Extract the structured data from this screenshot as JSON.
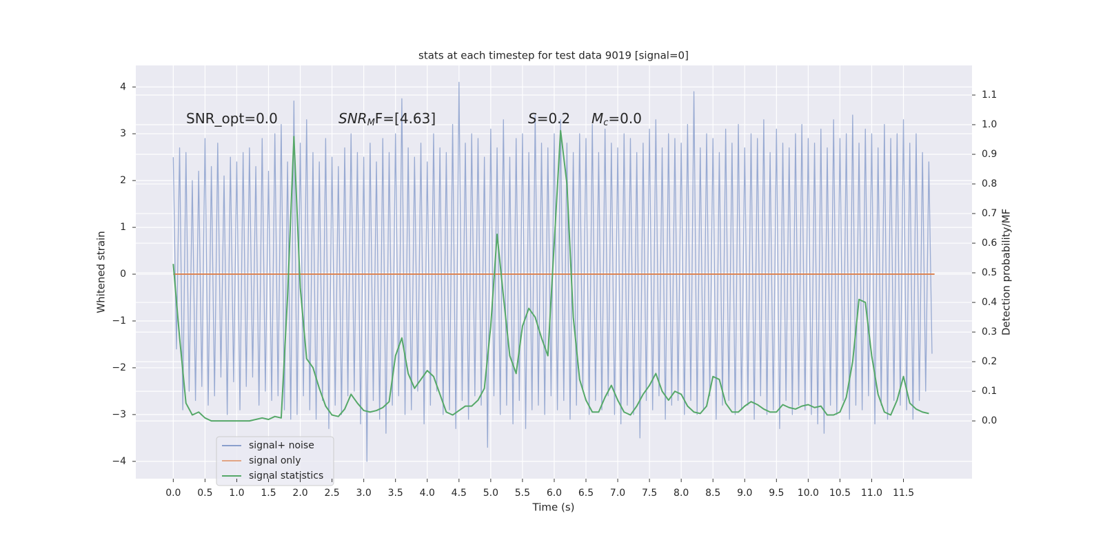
{
  "chart_data": {
    "type": "line",
    "title": "stats at each timestep for test data 9019 [signal=0]",
    "xlabel": "Time (s)",
    "ylabel": "Whitened strain",
    "y2label": "Detection probability/MF",
    "xlim": [
      -0.59,
      12.58
    ],
    "ylim": [
      -4.37,
      4.46
    ],
    "y2lim": [
      -0.195,
      1.2
    ],
    "xticks": [
      {
        "value": 0,
        "label": "0.0"
      },
      0.5,
      {
        "value": 1,
        "label": "1.0"
      },
      1.5,
      {
        "value": 2,
        "label": "2.0"
      },
      2.5,
      {
        "value": 3,
        "label": "3.0"
      },
      3.5,
      {
        "value": 4,
        "label": "4.0"
      },
      4.5,
      {
        "value": 5,
        "label": "5.0"
      },
      5.5,
      {
        "value": 6,
        "label": "6.0"
      },
      6.5,
      {
        "value": 7,
        "label": "7.0"
      },
      7.5,
      {
        "value": 8,
        "label": "8.0"
      },
      8.5,
      {
        "value": 9,
        "label": "9.0"
      },
      9.5,
      {
        "value": 10,
        "label": "10.0"
      },
      10.5,
      {
        "value": 11,
        "label": "11.0"
      },
      11.5
    ],
    "yticks": [
      {
        "value": -4,
        "label": "−4"
      },
      {
        "value": -3,
        "label": "−3"
      },
      {
        "value": -2,
        "label": "−2"
      },
      {
        "value": -1,
        "label": "−1"
      },
      0,
      1,
      2,
      3,
      4
    ],
    "y2ticks": [
      {
        "value": 0,
        "label": "0.0"
      },
      0.1,
      0.2,
      0.3,
      0.4,
      0.5,
      0.6,
      0.7,
      0.8,
      0.9,
      {
        "value": 1,
        "label": "1.0"
      },
      1.1
    ],
    "grid": true,
    "legend": "lower left",
    "annotations": [
      {
        "parts": [
          "SNR_opt=0.0"
        ]
      },
      {
        "parts": [
          "SNR",
          "M",
          "F=[4.63]"
        ]
      },
      {
        "parts": [
          "S",
          "=0.2"
        ]
      },
      {
        "parts": [
          "M",
          "c",
          "=0.0"
        ]
      }
    ],
    "series": [
      {
        "name": "signal+ noise",
        "color": "#8a9fcc",
        "x": [
          0,
          0.05,
          0.1,
          0.15,
          0.2,
          0.25,
          0.3,
          0.35,
          0.4,
          0.45,
          0.5,
          0.55,
          0.6,
          0.65,
          0.7,
          0.75,
          0.8,
          0.85,
          0.9,
          0.95,
          1,
          1.05,
          1.1,
          1.15,
          1.2,
          1.25,
          1.3,
          1.35,
          1.4,
          1.45,
          1.5,
          1.55,
          1.6,
          1.65,
          1.7,
          1.75,
          1.8,
          1.85,
          1.9,
          1.95,
          2,
          2.05,
          2.1,
          2.15,
          2.2,
          2.25,
          2.3,
          2.35,
          2.4,
          2.45,
          2.5,
          2.55,
          2.6,
          2.65,
          2.7,
          2.75,
          2.8,
          2.85,
          2.9,
          2.95,
          3,
          3.05,
          3.1,
          3.15,
          3.2,
          3.25,
          3.3,
          3.35,
          3.4,
          3.45,
          3.5,
          3.55,
          3.6,
          3.65,
          3.7,
          3.75,
          3.8,
          3.85,
          3.9,
          3.95,
          4,
          4.05,
          4.1,
          4.15,
          4.2,
          4.25,
          4.3,
          4.35,
          4.4,
          4.45,
          4.5,
          4.55,
          4.6,
          4.65,
          4.7,
          4.75,
          4.8,
          4.85,
          4.9,
          4.95,
          5,
          5.05,
          5.1,
          5.15,
          5.2,
          5.25,
          5.3,
          5.35,
          5.4,
          5.45,
          5.5,
          5.55,
          5.6,
          5.65,
          5.7,
          5.75,
          5.8,
          5.85,
          5.9,
          5.95,
          6,
          6.05,
          6.1,
          6.15,
          6.2,
          6.25,
          6.3,
          6.35,
          6.4,
          6.45,
          6.5,
          6.55,
          6.6,
          6.65,
          6.7,
          6.75,
          6.8,
          6.85,
          6.9,
          6.95,
          7,
          7.05,
          7.1,
          7.15,
          7.2,
          7.25,
          7.3,
          7.35,
          7.4,
          7.45,
          7.5,
          7.55,
          7.6,
          7.65,
          7.7,
          7.75,
          7.8,
          7.85,
          7.9,
          7.95,
          8,
          8.05,
          8.1,
          8.15,
          8.2,
          8.25,
          8.3,
          8.35,
          8.4,
          8.45,
          8.5,
          8.55,
          8.6,
          8.65,
          8.7,
          8.75,
          8.8,
          8.85,
          8.9,
          8.95,
          9,
          9.05,
          9.1,
          9.15,
          9.2,
          9.25,
          9.3,
          9.35,
          9.4,
          9.45,
          9.5,
          9.55,
          9.6,
          9.65,
          9.7,
          9.75,
          9.8,
          9.85,
          9.9,
          9.95,
          10,
          10.05,
          10.1,
          10.15,
          10.2,
          10.25,
          10.3,
          10.35,
          10.4,
          10.45,
          10.5,
          10.55,
          10.6,
          10.65,
          10.7,
          10.75,
          10.8,
          10.85,
          10.9,
          10.95,
          11,
          11.05,
          11.1,
          11.15,
          11.2,
          11.25,
          11.3,
          11.35,
          11.4,
          11.45,
          11.5,
          11.55,
          11.6,
          11.65,
          11.7,
          11.75,
          11.8,
          11.85,
          11.9,
          11.95
        ],
        "values": [
          2.5,
          -1.6,
          2.7,
          -2.9,
          2.6,
          -2.5,
          2.0,
          -2.7,
          2.2,
          -2.4,
          2.9,
          -2.8,
          2.3,
          -2.6,
          2.8,
          -2.2,
          2.1,
          -3.0,
          2.5,
          -2.3,
          2.4,
          -2.9,
          2.6,
          -2.4,
          2.7,
          -2.2,
          2.3,
          -2.8,
          2.9,
          -2.5,
          2.2,
          -2.7,
          3.0,
          -2.6,
          3.2,
          -2.9,
          2.4,
          -3.1,
          3.7,
          -3.0,
          2.8,
          -2.6,
          3.3,
          -2.9,
          2.6,
          -3.1,
          2.4,
          -2.7,
          2.9,
          -3.3,
          2.5,
          -2.8,
          2.3,
          -3.0,
          2.7,
          -2.6,
          3.0,
          -2.5,
          2.6,
          -3.2,
          2.5,
          -4.0,
          2.8,
          -2.7,
          2.4,
          -3.1,
          2.9,
          -3.4,
          2.6,
          -2.8,
          3.0,
          -2.6,
          3.75,
          -3.0,
          2.7,
          -2.9,
          2.5,
          -2.5,
          2.8,
          -3.2,
          2.4,
          -2.8,
          3.0,
          -2.5,
          2.7,
          -3.0,
          2.6,
          -2.9,
          3.2,
          -3.3,
          4.1,
          -2.7,
          2.8,
          -3.1,
          3.0,
          -2.6,
          2.9,
          -2.8,
          2.5,
          -3.7,
          3.1,
          -2.6,
          2.7,
          -3.0,
          3.3,
          -2.8,
          2.5,
          -3.2,
          2.9,
          -2.7,
          3.0,
          -3.3,
          2.6,
          -2.9,
          3.4,
          -2.8,
          2.8,
          -3.0,
          2.7,
          -2.6,
          3.0,
          -2.9,
          3.3,
          -2.7,
          2.8,
          -3.1,
          2.6,
          -2.8,
          3.0,
          -2.5,
          2.9,
          -3.0,
          3.2,
          -2.7,
          2.6,
          -2.9,
          3.1,
          -2.6,
          2.8,
          -3.0,
          2.7,
          -3.2,
          3.0,
          -2.8,
          2.9,
          -3.0,
          2.6,
          -3.5,
          2.8,
          -2.7,
          3.1,
          -2.9,
          3.3,
          -2.6,
          2.7,
          -3.1,
          3.0,
          -2.8,
          2.9,
          -2.7,
          2.8,
          -3.0,
          3.2,
          -2.7,
          3.9,
          -3.0,
          2.7,
          -2.9,
          3.0,
          -2.6,
          2.9,
          -3.1,
          2.6,
          -2.8,
          3.1,
          -2.7,
          2.8,
          -3.0,
          3.2,
          -2.9,
          2.7,
          -2.8,
          3.0,
          -3.1,
          2.9,
          -2.6,
          3.3,
          -3.0,
          2.6,
          -2.9,
          3.1,
          -3.3,
          2.8,
          -2.7,
          2.7,
          -3.0,
          3.0,
          -2.8,
          3.2,
          -2.9,
          2.9,
          -3.0,
          2.8,
          -3.2,
          3.1,
          -3.4,
          2.7,
          -2.8,
          3.3,
          -3.0,
          2.9,
          -2.7,
          3.0,
          -3.1,
          3.4,
          -2.8,
          2.8,
          -2.9,
          3.1,
          -2.6,
          3.0,
          -3.2,
          2.7,
          -2.8,
          3.2,
          -3.1,
          2.9,
          -2.7,
          3.0,
          -2.8,
          3.3,
          -2.9,
          2.8,
          -3.1,
          3.0,
          -2.7,
          2.6,
          -2.5,
          2.4,
          -1.7
        ]
      },
      {
        "name": "signal only",
        "color": "#dd8452",
        "x": [
          0,
          11.99
        ],
        "values": [
          0,
          0
        ]
      },
      {
        "name": "signal statistics",
        "color": "#55a868",
        "axis": "y2",
        "x": [
          0,
          0.1,
          0.2,
          0.3,
          0.4,
          0.5,
          0.6,
          0.7,
          0.8,
          0.9,
          1,
          1.1,
          1.2,
          1.3,
          1.4,
          1.5,
          1.6,
          1.7,
          1.8,
          1.9,
          2,
          2.1,
          2.2,
          2.3,
          2.4,
          2.5,
          2.6,
          2.7,
          2.8,
          2.9,
          3,
          3.1,
          3.2,
          3.3,
          3.4,
          3.5,
          3.6,
          3.7,
          3.8,
          3.9,
          4,
          4.1,
          4.2,
          4.3,
          4.4,
          4.5,
          4.6,
          4.7,
          4.8,
          4.9,
          5,
          5.1,
          5.2,
          5.3,
          5.4,
          5.5,
          5.6,
          5.7,
          5.8,
          5.9,
          6,
          6.1,
          6.2,
          6.3,
          6.4,
          6.5,
          6.6,
          6.7,
          6.8,
          6.9,
          7,
          7.1,
          7.2,
          7.3,
          7.4,
          7.5,
          7.6,
          7.7,
          7.8,
          7.9,
          8,
          8.1,
          8.2,
          8.3,
          8.4,
          8.5,
          8.6,
          8.7,
          8.8,
          8.9,
          9,
          9.1,
          9.2,
          9.3,
          9.4,
          9.5,
          9.6,
          9.7,
          9.8,
          9.9,
          10,
          10.1,
          10.2,
          10.3,
          10.4,
          10.5,
          10.6,
          10.7,
          10.8,
          10.9,
          11,
          11.1,
          11.2,
          11.3,
          11.4,
          11.5,
          11.6,
          11.7,
          11.8,
          11.9
        ],
        "values": [
          0.53,
          0.28,
          0.06,
          0.02,
          0.03,
          0.01,
          0,
          0,
          0,
          0,
          0,
          0,
          0,
          0.005,
          0.01,
          0.005,
          0.015,
          0.01,
          0.42,
          0.96,
          0.45,
          0.21,
          0.18,
          0.11,
          0.05,
          0.02,
          0.015,
          0.04,
          0.09,
          0.06,
          0.035,
          0.03,
          0.035,
          0.045,
          0.065,
          0.22,
          0.28,
          0.16,
          0.11,
          0.14,
          0.17,
          0.15,
          0.09,
          0.03,
          0.02,
          0.035,
          0.05,
          0.05,
          0.07,
          0.11,
          0.32,
          0.63,
          0.42,
          0.22,
          0.16,
          0.32,
          0.38,
          0.35,
          0.28,
          0.22,
          0.6,
          0.98,
          0.8,
          0.35,
          0.14,
          0.07,
          0.03,
          0.03,
          0.08,
          0.12,
          0.07,
          0.03,
          0.02,
          0.05,
          0.09,
          0.12,
          0.16,
          0.1,
          0.07,
          0.1,
          0.09,
          0.05,
          0.03,
          0.025,
          0.05,
          0.15,
          0.14,
          0.06,
          0.03,
          0.03,
          0.05,
          0.065,
          0.055,
          0.04,
          0.03,
          0.03,
          0.055,
          0.045,
          0.04,
          0.05,
          0.055,
          0.045,
          0.05,
          0.02,
          0.02,
          0.03,
          0.08,
          0.2,
          0.41,
          0.4,
          0.22,
          0.09,
          0.03,
          0.02,
          0.07,
          0.15,
          0.06,
          0.04,
          0.03,
          0.025
        ]
      }
    ]
  }
}
